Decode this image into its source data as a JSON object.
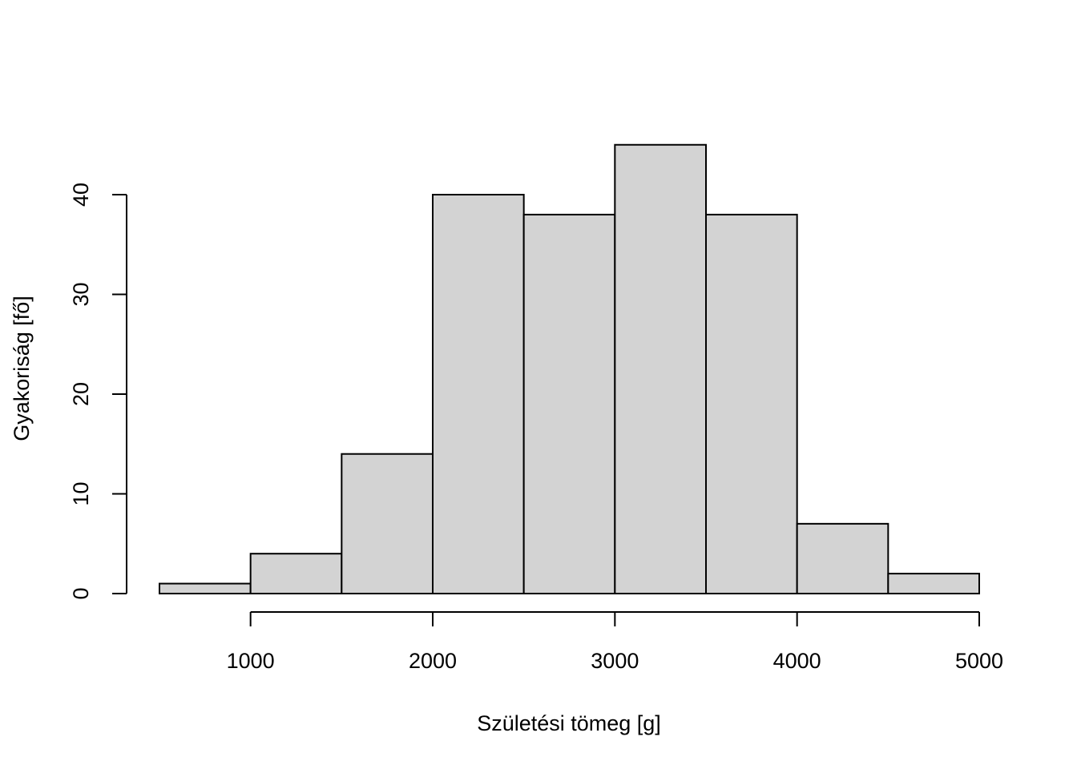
{
  "chart_data": {
    "type": "bar",
    "title": "",
    "xlabel": "Születési tömeg [g]",
    "ylabel": "Gyakoriság [fő]",
    "bins": [
      {
        "start": 500,
        "end": 1000,
        "count": 1
      },
      {
        "start": 1000,
        "end": 1500,
        "count": 4
      },
      {
        "start": 1500,
        "end": 2000,
        "count": 14
      },
      {
        "start": 2000,
        "end": 2500,
        "count": 40
      },
      {
        "start": 2500,
        "end": 3000,
        "count": 38
      },
      {
        "start": 3000,
        "end": 3500,
        "count": 45
      },
      {
        "start": 3500,
        "end": 4000,
        "count": 38
      },
      {
        "start": 4000,
        "end": 4500,
        "count": 7
      },
      {
        "start": 4500,
        "end": 5000,
        "count": 2
      }
    ],
    "x_ticks": [
      1000,
      2000,
      3000,
      4000,
      5000
    ],
    "x_tick_labels": [
      "1000",
      "2000",
      "3000",
      "4000",
      "5000"
    ],
    "y_ticks": [
      0,
      10,
      20,
      30,
      40
    ],
    "y_tick_labels": [
      "0",
      "10",
      "20",
      "30",
      "40"
    ],
    "xlim": [
      500,
      5000
    ],
    "ylim": [
      0,
      45
    ],
    "grid": false,
    "legend": "none",
    "colors": {
      "bar_fill": "#d3d3d3",
      "bar_edge": "#000000",
      "background": "#ffffff"
    }
  }
}
